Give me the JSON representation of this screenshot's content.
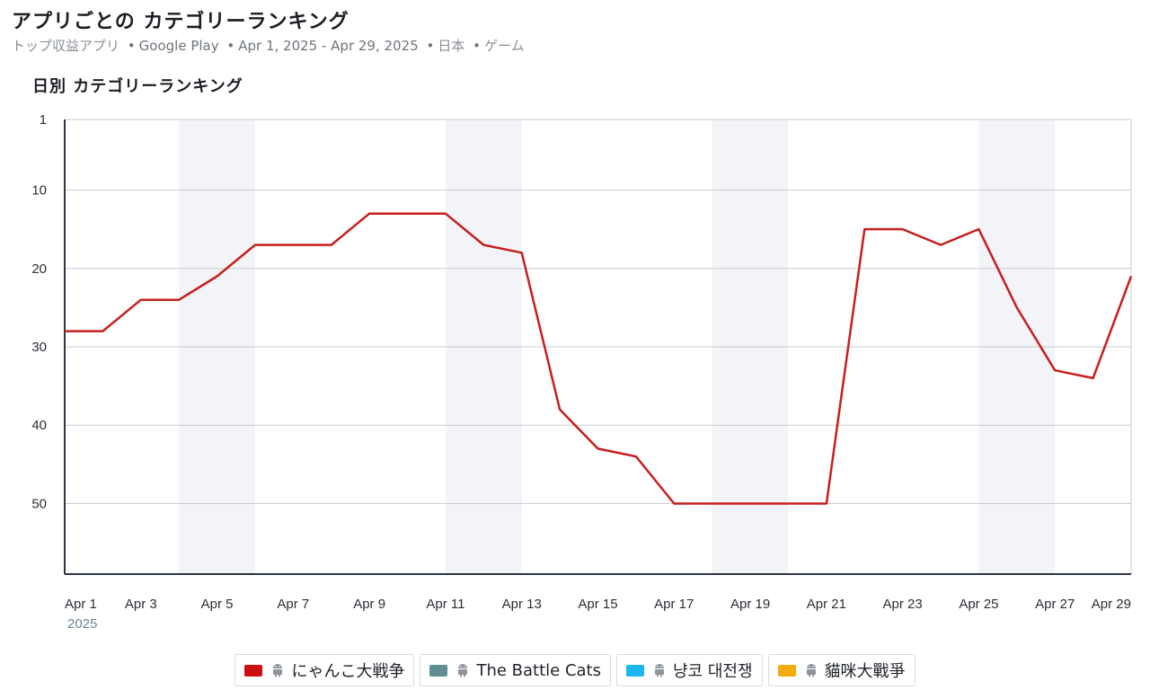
{
  "header": {
    "title": "アプリごとの カテゴリーランキング",
    "subtitle_prefix": "トップ収益アプリ",
    "platform": "Google Play",
    "date_range": "Apr 1, 2025 - Apr 29, 2025",
    "country": "日本",
    "category": "ゲーム",
    "separator": "•"
  },
  "chart_title": "日別 カテゴリーランキング",
  "colors": {
    "line": "#c81e1e",
    "weekend_band": "#f3f4f7",
    "grid": "#c9ccd1",
    "axis": "#2b3442"
  },
  "chart_data": {
    "type": "line",
    "y_inverted": true,
    "ylim": [
      1,
      59
    ],
    "y_ticks": [
      1,
      10,
      20,
      30,
      40,
      50
    ],
    "x_days": [
      1,
      29
    ],
    "x_tick_days": [
      1,
      3,
      5,
      7,
      9,
      11,
      13,
      15,
      17,
      19,
      21,
      23,
      25,
      27,
      29
    ],
    "x_tick_labels": [
      "Apr 1",
      "Apr 3",
      "Apr 5",
      "Apr 7",
      "Apr 9",
      "Apr 11",
      "Apr 13",
      "Apr 15",
      "Apr 17",
      "Apr 19",
      "Apr 21",
      "Apr 23",
      "Apr 25",
      "Apr 27",
      "Apr 29"
    ],
    "x_year_label": "2025",
    "weekend_bands": [
      [
        4,
        6
      ],
      [
        11,
        13
      ],
      [
        18,
        20
      ],
      [
        25,
        27
      ]
    ],
    "series": [
      {
        "name": "にゃんこ大戦争",
        "color": "#c81e1e",
        "x": [
          1,
          2,
          3,
          4,
          5,
          6,
          7,
          8,
          9,
          10,
          11,
          12,
          13,
          14,
          15,
          16,
          17,
          18,
          19,
          20,
          21,
          22,
          23,
          24,
          25,
          26,
          27,
          28,
          29
        ],
        "y": [
          28,
          28,
          24,
          24,
          21,
          17,
          17,
          17,
          13,
          13,
          13,
          17,
          18,
          38,
          43,
          44,
          50,
          50,
          50,
          50,
          50,
          15,
          15,
          17,
          15,
          25,
          33,
          34,
          21
        ]
      }
    ],
    "legend": [
      {
        "label": "にゃんこ大戦争",
        "color": "#cc0f0f",
        "icon": "android-icon"
      },
      {
        "label": "The Battle Cats",
        "color": "#5f8f92",
        "icon": "android-icon"
      },
      {
        "label": "냥코 대전쟁",
        "color": "#1ab8ee",
        "icon": "android-icon"
      },
      {
        "label": "貓咪大戰爭",
        "color": "#f2ac0c",
        "icon": "android-icon"
      }
    ]
  }
}
